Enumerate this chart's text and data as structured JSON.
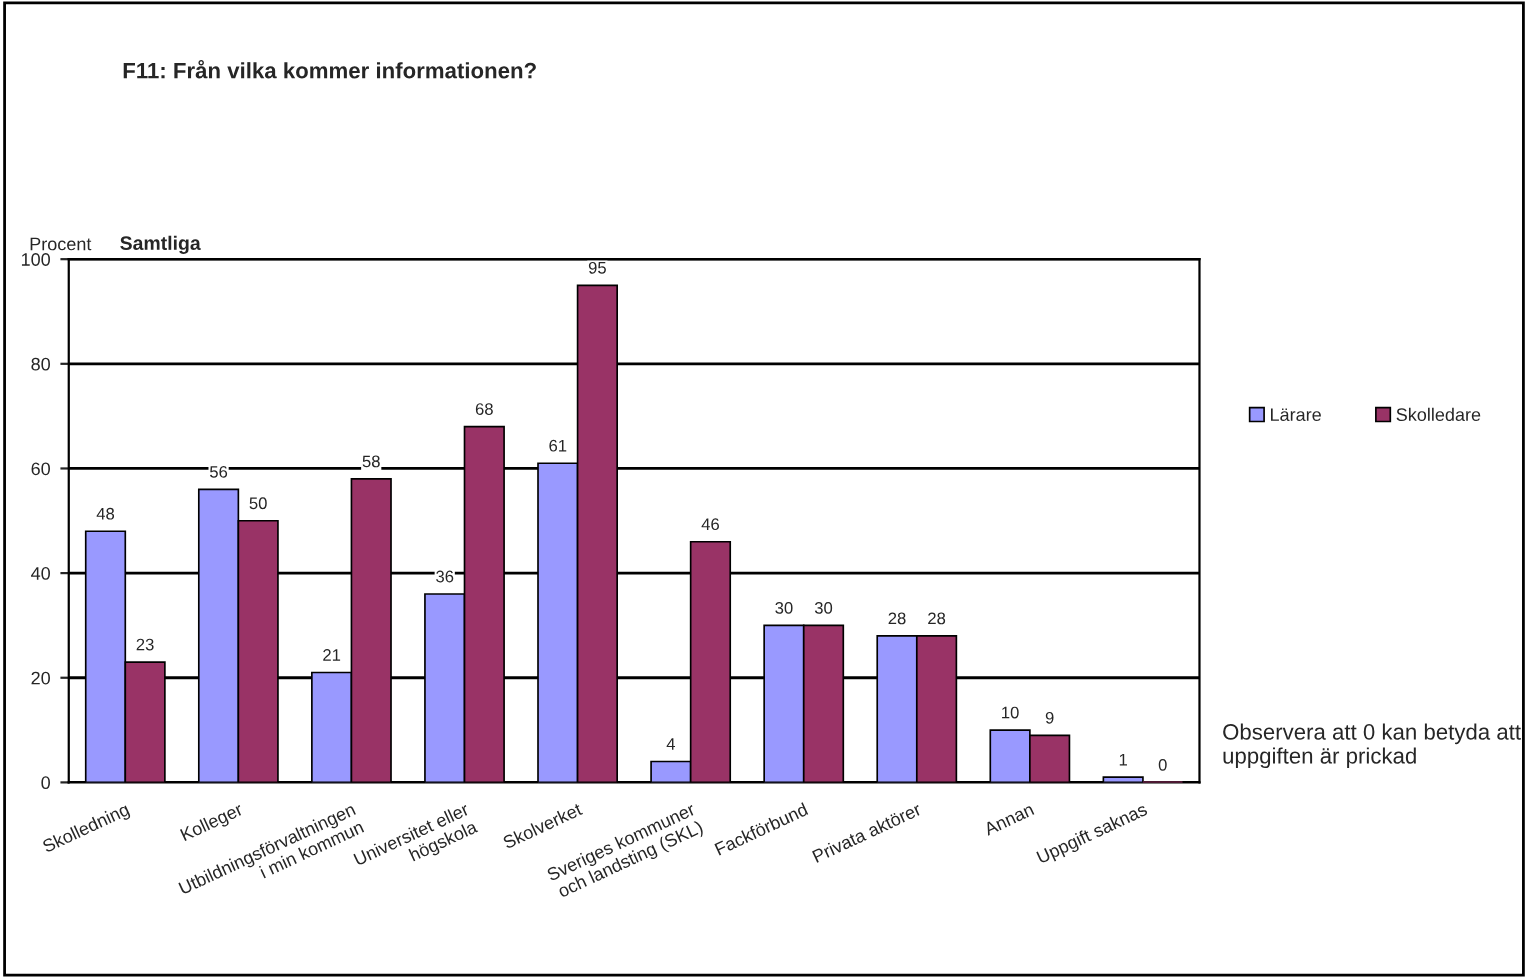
{
  "chart_data": {
    "type": "bar",
    "title": "F11: Från vilka kommer informationen?",
    "subtitle": "Samtliga",
    "ylabel": "Procent",
    "categories": [
      "Skolledning",
      "Kolleger",
      "Utbildningsförvaltningen\ni min kommun",
      "Universitet eller\nhögskola",
      "Skolverket",
      "Sveriges kommuner\noch landsting (SKL)",
      "Fackförbund",
      "Privata aktörer",
      "Annan",
      "Uppgift saknas"
    ],
    "series": [
      {
        "name": "Lärare",
        "color": "#9999ff",
        "values": [
          48,
          56,
          21,
          36,
          61,
          4,
          30,
          28,
          10,
          1
        ]
      },
      {
        "name": "Skolledare",
        "color": "#993366",
        "values": [
          23,
          50,
          58,
          68,
          95,
          46,
          30,
          28,
          9,
          0
        ]
      }
    ],
    "ylim": [
      0,
      100
    ],
    "yticks": [
      0,
      20,
      40,
      60,
      80,
      100
    ],
    "grid": "y",
    "legend": "right",
    "data_labels": true,
    "annotations": [
      "Observera att 0 kan betyda att\nuppgiften är prickad"
    ]
  }
}
